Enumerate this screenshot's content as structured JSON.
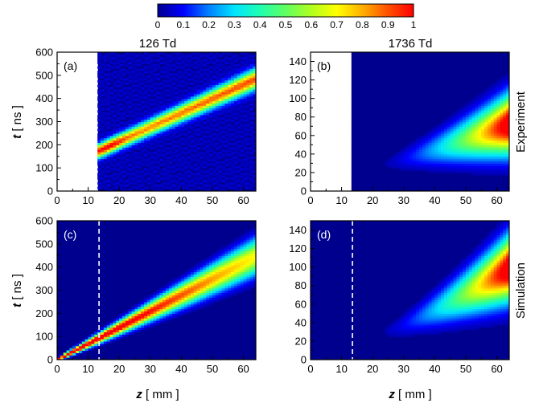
{
  "colorbar": {
    "ticks": [
      "0",
      "0.1",
      "0.2",
      "0.3",
      "0.4",
      "0.5",
      "0.6",
      "0.7",
      "0.8",
      "0.9",
      "1"
    ],
    "range": [
      0,
      1
    ],
    "colors": [
      "#00008f",
      "#0000ff",
      "#0080ff",
      "#00e5ff",
      "#20ffb0",
      "#60ff60",
      "#b0ff20",
      "#ffff00",
      "#ffb000",
      "#ff5000",
      "#ff0000"
    ]
  },
  "column_titles": [
    "126 Td",
    "1736 Td"
  ],
  "row_labels": [
    "Experiment",
    "Simulation"
  ],
  "x_axis": {
    "label_var": "z",
    "label_unit": "[ mm ]",
    "ticks": [
      "0",
      "10",
      "20",
      "30",
      "40",
      "50",
      "60"
    ]
  },
  "y_axis": {
    "label_var": "t",
    "label_unit": "[ ns ]"
  },
  "chart_data": [
    {
      "type": "heatmap",
      "panel": "(a)",
      "column_title": "126 Td",
      "row": "Experiment",
      "xlim": [
        0,
        64
      ],
      "ylim": [
        0,
        600
      ],
      "yticks": [
        "0",
        "100",
        "200",
        "300",
        "400",
        "500",
        "600"
      ],
      "no_data_region_z_max": 13.5,
      "ridge": {
        "z_start": 13.5,
        "t_start": 175,
        "z_end": 63,
        "t_end": 480
      },
      "peak_value": 1
    },
    {
      "type": "heatmap",
      "panel": "(b)",
      "column_title": "1736 Td",
      "row": "Experiment",
      "xlim": [
        0,
        64
      ],
      "ylim": [
        0,
        150
      ],
      "yticks": [
        "0",
        "20",
        "40",
        "60",
        "80",
        "100",
        "120",
        "140"
      ],
      "no_data_region_z_max": 13.5,
      "peak": {
        "z": 62,
        "t": 70
      },
      "peak_value": 1
    },
    {
      "type": "heatmap",
      "panel": "(c)",
      "row": "Simulation",
      "xlim": [
        0,
        64
      ],
      "ylim": [
        0,
        600
      ],
      "yticks": [
        "0",
        "100",
        "200",
        "300",
        "400",
        "500",
        "600"
      ],
      "dashed_line_z": 13.5,
      "ridge": {
        "z_start": 0,
        "t_start": 0,
        "z_end": 63,
        "t_end": 440
      },
      "peak_value": 1
    },
    {
      "type": "heatmap",
      "panel": "(d)",
      "row": "Simulation",
      "xlim": [
        0,
        64
      ],
      "ylim": [
        0,
        150
      ],
      "yticks": [
        "0",
        "20",
        "40",
        "60",
        "80",
        "100",
        "120",
        "140"
      ],
      "dashed_line_z": 13.5,
      "peak": {
        "z": 62,
        "t": 95
      },
      "peak_value": 1
    }
  ]
}
